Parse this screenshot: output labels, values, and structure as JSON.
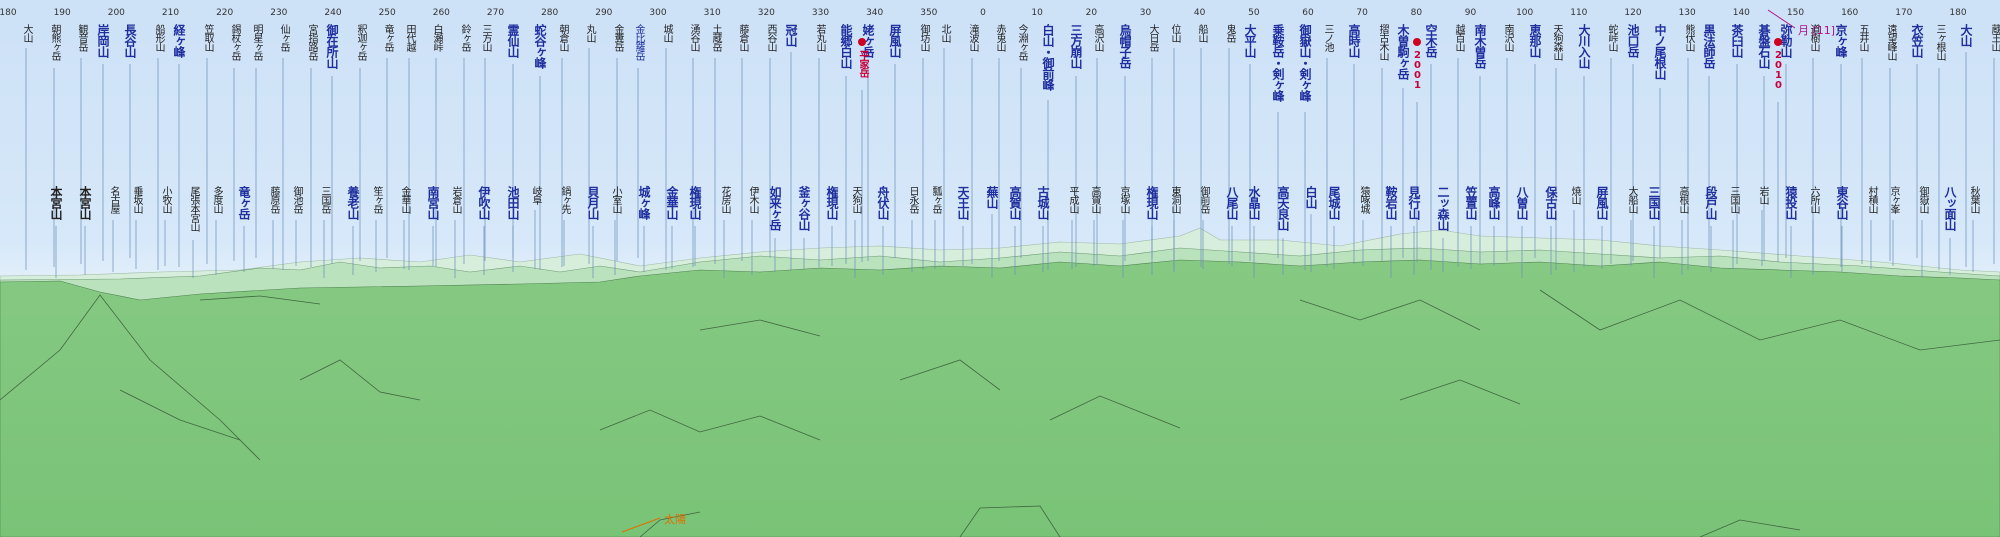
{
  "panorama": {
    "ruler_ticks": [
      "180",
      "190",
      "200",
      "210",
      "220",
      "230",
      "240",
      "250",
      "260",
      "270",
      "280",
      "290",
      "300",
      "310",
      "320",
      "330",
      "340",
      "350",
      "0",
      "10",
      "20",
      "30",
      "40",
      "50",
      "60",
      "70",
      "80",
      "90",
      "100",
      "110",
      "120",
      "130",
      "140",
      "150",
      "160",
      "170",
      "180"
    ],
    "top_labels": [
      {
        "t": "大山",
        "c": "dark",
        "m": false
      },
      {
        "t": "朝熊ヶ岳",
        "c": "dark",
        "m": false
      },
      {
        "t": "観音岳",
        "c": "dark",
        "m": false
      },
      {
        "t": "岸岡山",
        "c": "blue",
        "m": true
      },
      {
        "t": "長谷山",
        "c": "blue",
        "m": true
      },
      {
        "t": "船形山",
        "c": "dark",
        "m": false
      },
      {
        "t": "経ヶ峰",
        "c": "blue",
        "m": true
      },
      {
        "t": "笠取山",
        "c": "dark",
        "m": false
      },
      {
        "t": "錫杖ヶ岳",
        "c": "dark",
        "m": false
      },
      {
        "t": "明星ヶ岳",
        "c": "dark",
        "m": false
      },
      {
        "t": "仙ヶ岳",
        "c": "dark",
        "m": false
      },
      {
        "t": "宮指路岳",
        "c": "dark",
        "m": false
      },
      {
        "t": "御在所山",
        "c": "blue",
        "m": true
      },
      {
        "t": "釈迦ヶ岳",
        "c": "dark",
        "m": false
      },
      {
        "t": "竜ヶ岳",
        "c": "dark",
        "m": false
      },
      {
        "t": "田代越",
        "c": "dark",
        "m": false
      },
      {
        "t": "白瀬峠",
        "c": "dark",
        "m": false
      },
      {
        "t": "鈴ヶ岳",
        "c": "dark",
        "m": false
      },
      {
        "t": "三方山",
        "c": "dark",
        "m": false
      },
      {
        "t": "霊仙山",
        "c": "blue",
        "m": true
      },
      {
        "t": "蛇谷ヶ峰",
        "c": "blue",
        "m": true
      },
      {
        "t": "朝倉山",
        "c": "dark",
        "m": false
      },
      {
        "t": "丸山",
        "c": "dark",
        "m": false
      },
      {
        "t": "金糞岳",
        "c": "dark",
        "m": false
      },
      {
        "t": "金比羅岳",
        "c": "blue",
        "m": false
      },
      {
        "t": "城山",
        "c": "dark",
        "m": false
      },
      {
        "t": "湧谷山",
        "c": "dark",
        "m": false
      },
      {
        "t": "土蔵岳",
        "c": "dark",
        "m": false
      },
      {
        "t": "藤倉山",
        "c": "dark",
        "m": false
      },
      {
        "t": "西谷山",
        "c": "dark",
        "m": false
      },
      {
        "t": "冠山",
        "c": "blue",
        "m": true
      },
      {
        "t": "若丸山",
        "c": "dark",
        "m": false
      },
      {
        "t": "能郷白山",
        "c": "blue",
        "m": true
      },
      {
        "t": "姥ヶ岳",
        "c": "blue",
        "m": true
      },
      {
        "t": "屏風山",
        "c": "blue",
        "m": true
      },
      {
        "t": "御坊山",
        "c": "dark",
        "m": false
      },
      {
        "t": "北山",
        "c": "dark",
        "m": false
      },
      {
        "t": "滝波山",
        "c": "dark",
        "m": false
      },
      {
        "t": "赤兎山",
        "c": "dark",
        "m": false
      },
      {
        "t": "今淵ヶ岳",
        "c": "dark",
        "m": false
      },
      {
        "t": "白山・御前峰",
        "c": "blue",
        "m": true
      },
      {
        "t": "三方崩山",
        "c": "blue",
        "m": true
      },
      {
        "t": "高沢山",
        "c": "dark",
        "m": false
      },
      {
        "t": "烏帽子岳",
        "c": "blue",
        "m": true
      },
      {
        "t": "大日岳",
        "c": "dark",
        "m": false
      },
      {
        "t": "位山",
        "c": "dark",
        "m": false
      },
      {
        "t": "船山",
        "c": "dark",
        "m": false
      },
      {
        "t": "鬼岳",
        "c": "dark",
        "m": false
      },
      {
        "t": "大平山",
        "c": "blue",
        "m": true
      },
      {
        "t": "乗鞍岳・剣ヶ峰",
        "c": "blue",
        "m": true
      },
      {
        "t": "御嶽山・剣ヶ峰",
        "c": "blue",
        "m": true
      },
      {
        "t": "三ノ池",
        "c": "dark",
        "m": false
      },
      {
        "t": "高時山",
        "c": "blue",
        "m": true
      },
      {
        "t": "摺古木山",
        "c": "dark",
        "m": false
      },
      {
        "t": "木曽駒ヶ岳",
        "c": "blue",
        "m": true
      },
      {
        "t": "空木岳",
        "c": "blue",
        "m": true
      },
      {
        "t": "越百山",
        "c": "dark",
        "m": false
      },
      {
        "t": "南木曽岳",
        "c": "blue",
        "m": true
      },
      {
        "t": "南沢山",
        "c": "dark",
        "m": false
      },
      {
        "t": "恵那山",
        "c": "blue",
        "m": true
      },
      {
        "t": "天狗森山",
        "c": "dark",
        "m": false
      },
      {
        "t": "大川入山",
        "c": "blue",
        "m": true
      },
      {
        "t": "蛇峠山",
        "c": "dark",
        "m": false
      },
      {
        "t": "池口岳",
        "c": "blue",
        "m": true
      },
      {
        "t": "中ノ尾根山",
        "c": "blue",
        "m": true
      },
      {
        "t": "熊伏山",
        "c": "dark",
        "m": false
      },
      {
        "t": "黒法師岳",
        "c": "blue",
        "m": true
      },
      {
        "t": "茶臼山",
        "c": "blue",
        "m": true
      },
      {
        "t": "碁盤石山",
        "c": "blue",
        "m": true
      },
      {
        "t": "弥勒山",
        "c": "blue",
        "m": true
      },
      {
        "t": "道樹山",
        "c": "dark",
        "m": false
      },
      {
        "t": "京ヶ峰",
        "c": "blue",
        "m": true
      },
      {
        "t": "五井山",
        "c": "dark",
        "m": false
      },
      {
        "t": "遠望峰山",
        "c": "dark",
        "m": false
      },
      {
        "t": "衣笠山",
        "c": "blue",
        "m": true
      },
      {
        "t": "三ヶ根山",
        "c": "dark",
        "m": false
      },
      {
        "t": "大山",
        "c": "blue",
        "m": true
      },
      {
        "t": "蔵王山",
        "c": "dark",
        "m": false
      }
    ],
    "bottom_labels": [
      {
        "t": "本宮山",
        "c": "dark",
        "m": true
      },
      {
        "t": "本宮山",
        "c": "dark",
        "m": true
      },
      {
        "t": "名古屋",
        "c": "dark",
        "m": false
      },
      {
        "t": "垂坂山",
        "c": "dark",
        "m": false
      },
      {
        "t": "小牧山",
        "c": "dark",
        "m": false
      },
      {
        "t": "尾張本宮山",
        "c": "dark",
        "m": false
      },
      {
        "t": "多度山",
        "c": "dark",
        "m": false
      },
      {
        "t": "竜ヶ岳",
        "c": "blue",
        "m": true
      },
      {
        "t": "藤原岳",
        "c": "dark",
        "m": false
      },
      {
        "t": "御池岳",
        "c": "dark",
        "m": false
      },
      {
        "t": "三国岳",
        "c": "dark",
        "m": false
      },
      {
        "t": "養老山",
        "c": "blue",
        "m": true
      },
      {
        "t": "笙ヶ岳",
        "c": "dark",
        "m": false
      },
      {
        "t": "金華山",
        "c": "dark",
        "m": false
      },
      {
        "t": "南宮山",
        "c": "blue",
        "m": true
      },
      {
        "t": "岩倉山",
        "c": "dark",
        "m": false
      },
      {
        "t": "伊吹山",
        "c": "blue",
        "m": true
      },
      {
        "t": "池田山",
        "c": "blue",
        "m": true
      },
      {
        "t": "岐阜",
        "c": "dark",
        "m": false
      },
      {
        "t": "鍋ヶ先",
        "c": "dark",
        "m": false
      },
      {
        "t": "貝月山",
        "c": "blue",
        "m": true
      },
      {
        "t": "小室山",
        "c": "dark",
        "m": false
      },
      {
        "t": "城ヶ峰",
        "c": "blue",
        "m": true
      },
      {
        "t": "金華山",
        "c": "blue",
        "m": true
      },
      {
        "t": "権現山",
        "c": "blue",
        "m": true
      },
      {
        "t": "花房山",
        "c": "dark",
        "m": false
      },
      {
        "t": "伊木山",
        "c": "dark",
        "m": false
      },
      {
        "t": "如来ヶ岳",
        "c": "blue",
        "m": true
      },
      {
        "t": "釜ヶ谷山",
        "c": "blue",
        "m": true
      },
      {
        "t": "権現山",
        "c": "blue",
        "m": true
      },
      {
        "t": "天狗山",
        "c": "dark",
        "m": false
      },
      {
        "t": "舟伏山",
        "c": "blue",
        "m": true
      },
      {
        "t": "日永岳",
        "c": "dark",
        "m": false
      },
      {
        "t": "瓢ヶ岳",
        "c": "dark",
        "m": false
      },
      {
        "t": "天王山",
        "c": "blue",
        "m": true
      },
      {
        "t": "蕪山",
        "c": "blue",
        "m": true
      },
      {
        "t": "高賀山",
        "c": "blue",
        "m": true
      },
      {
        "t": "古城山",
        "c": "blue",
        "m": true
      },
      {
        "t": "平成山",
        "c": "dark",
        "m": false
      },
      {
        "t": "高賀山",
        "c": "dark",
        "m": false
      },
      {
        "t": "京塚山",
        "c": "dark",
        "m": false
      },
      {
        "t": "権現山",
        "c": "blue",
        "m": true
      },
      {
        "t": "東洞山",
        "c": "dark",
        "m": false
      },
      {
        "t": "御前岳",
        "c": "dark",
        "m": false
      },
      {
        "t": "八尾山",
        "c": "blue",
        "m": true
      },
      {
        "t": "水晶山",
        "c": "blue",
        "m": true
      },
      {
        "t": "高天良山",
        "c": "blue",
        "m": true
      },
      {
        "t": "白山",
        "c": "blue",
        "m": true
      },
      {
        "t": "尾城山",
        "c": "blue",
        "m": true
      },
      {
        "t": "猿啄城",
        "c": "dark",
        "m": false
      },
      {
        "t": "鞍岩山",
        "c": "blue",
        "m": true
      },
      {
        "t": "見行山",
        "c": "blue",
        "m": true
      },
      {
        "t": "二ッ森山",
        "c": "blue",
        "m": true
      },
      {
        "t": "笠置山",
        "c": "blue",
        "m": true
      },
      {
        "t": "高峰山",
        "c": "blue",
        "m": true
      },
      {
        "t": "八曽山",
        "c": "blue",
        "m": true
      },
      {
        "t": "保古山",
        "c": "blue",
        "m": true
      },
      {
        "t": "焼山",
        "c": "dark",
        "m": false
      },
      {
        "t": "屏風山",
        "c": "blue",
        "m": true
      },
      {
        "t": "大船山",
        "c": "dark",
        "m": false
      },
      {
        "t": "三国山",
        "c": "blue",
        "m": true
      },
      {
        "t": "高根山",
        "c": "dark",
        "m": false
      },
      {
        "t": "段戸山",
        "c": "blue",
        "m": true
      },
      {
        "t": "三国山",
        "c": "dark",
        "m": false
      },
      {
        "t": "岩山",
        "c": "dark",
        "m": false
      },
      {
        "t": "猿投山",
        "c": "blue",
        "m": true
      },
      {
        "t": "六所山",
        "c": "dark",
        "m": false
      },
      {
        "t": "東谷山",
        "c": "blue",
        "m": true
      },
      {
        "t": "村積山",
        "c": "dark",
        "m": false
      },
      {
        "t": "京ヶ峯",
        "c": "dark",
        "m": false
      },
      {
        "t": "御嶽山",
        "c": "dark",
        "m": false
      },
      {
        "t": "八ッ面山",
        "c": "blue",
        "m": true
      },
      {
        "t": "秋葉山",
        "c": "dark",
        "m": false
      }
    ],
    "markers": [
      {
        "label": "平家岳",
        "kind": "peak-marker"
      },
      {
        "label": "2001",
        "kind": "peak-marker"
      },
      {
        "label": "2010",
        "kind": "peak-marker"
      }
    ],
    "sun_label": "太陽",
    "moon_label": "月 [11]",
    "colors": {
      "sky": "#cde1f7",
      "ground": "#7dc47a",
      "far_ridge": "#cfe9d5",
      "label_blue": "#1f2f9f",
      "marker_red": "#c8003a",
      "sun": "#e07000",
      "moon": "#b0108a"
    }
  }
}
